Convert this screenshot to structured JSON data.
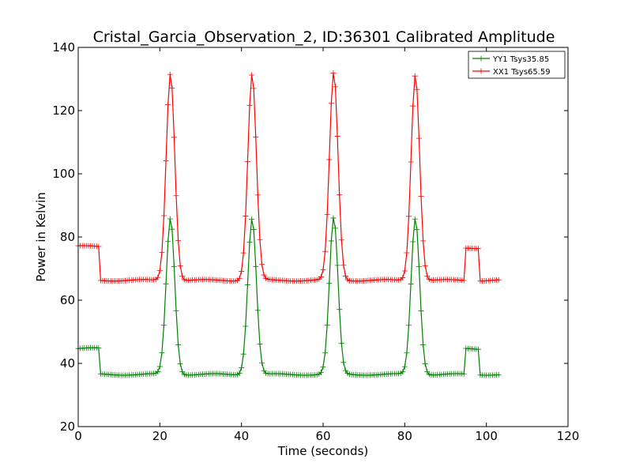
{
  "chart_data": {
    "type": "line",
    "title": "Cristal_Garcia_Observation_2, ID:36301 Calibrated Amplitude",
    "xlabel": "Time (seconds)",
    "ylabel": "Power in Kelvin",
    "xlim": [
      0,
      120
    ],
    "ylim": [
      20,
      140
    ],
    "xticks": [
      0,
      20,
      40,
      60,
      80,
      100,
      120
    ],
    "yticks": [
      20,
      40,
      60,
      80,
      100,
      120,
      140
    ],
    "grid": false,
    "legend_position": "top-right",
    "marker": "+",
    "series": [
      {
        "name": "YY1 Tsys35.85",
        "color": "#008000",
        "baseline": 36.5,
        "segments": [
          {
            "x_start": 0,
            "x_end": 5,
            "value": 44.7
          },
          {
            "x_start": 95,
            "x_end": 98,
            "value": 44.6
          }
        ],
        "peaks": [
          {
            "center": 22.6,
            "value": 86
          },
          {
            "center": 42.6,
            "value": 86
          },
          {
            "center": 62.6,
            "value": 86
          },
          {
            "center": 82.6,
            "value": 86
          }
        ],
        "x_end": 103
      },
      {
        "name": "XX1 Tsys65.59",
        "color": "#ff0000",
        "baseline": 66.3,
        "segments": [
          {
            "x_start": 0,
            "x_end": 5,
            "value": 77.0
          },
          {
            "x_start": 95,
            "x_end": 98,
            "value": 76.6
          }
        ],
        "peaks": [
          {
            "center": 22.6,
            "value": 132
          },
          {
            "center": 42.6,
            "value": 131.5
          },
          {
            "center": 62.6,
            "value": 132
          },
          {
            "center": 82.6,
            "value": 131.5
          }
        ],
        "x_end": 103
      }
    ]
  }
}
